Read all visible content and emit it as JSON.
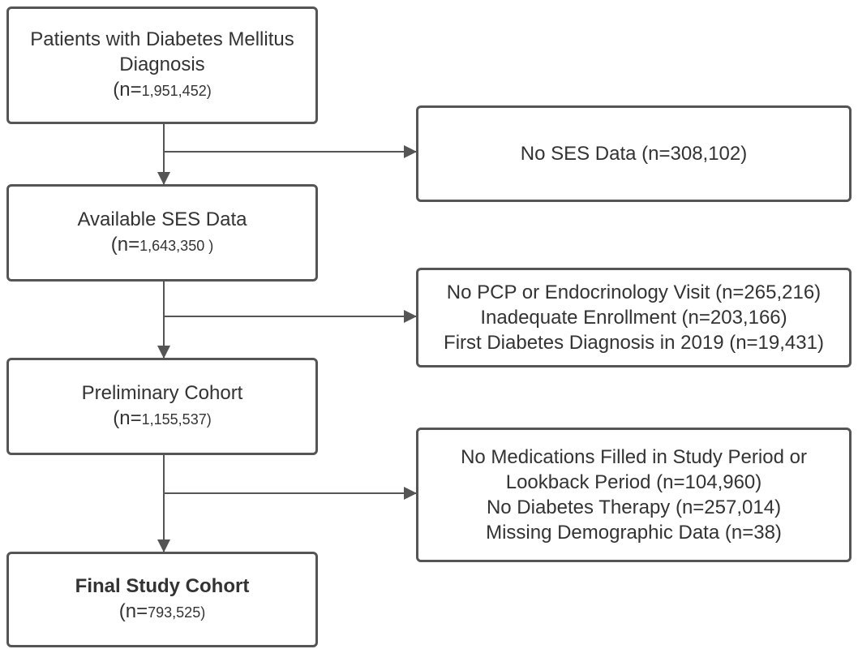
{
  "nodes": [
    {
      "lines": [
        "Patients with Diabetes Mellitus",
        "Diagnosis"
      ],
      "count_prefix": "(n=",
      "count": "1,951,452",
      "count_suffix": ")"
    },
    {
      "lines": [
        "Available SES Data"
      ],
      "count_prefix": "(n=",
      "count": "1,643,350",
      "count_suffix": " )"
    },
    {
      "lines": [
        "Preliminary Cohort"
      ],
      "count_prefix": "(n=",
      "count": "1,155,537",
      "count_suffix": ")"
    },
    {
      "lines": [
        "Final Study Cohort"
      ],
      "count_prefix": "(n=",
      "count": "793,525",
      "count_suffix": ")"
    }
  ],
  "exclusions": [
    {
      "lines": [
        "No SES Data  (n=308,102)"
      ]
    },
    {
      "lines": [
        "No PCP or Endocrinology Visit (n=265,216)",
        "Inadequate Enrollment (n=203,166)",
        "First Diabetes Diagnosis in 2019 (n=19,431)"
      ]
    },
    {
      "lines": [
        "No Medications Filled in Study Period or",
        "Lookback Period (n=104,960)",
        "No Diabetes Therapy (n=257,014)",
        "Missing Demographic Data (n=38)"
      ]
    }
  ]
}
